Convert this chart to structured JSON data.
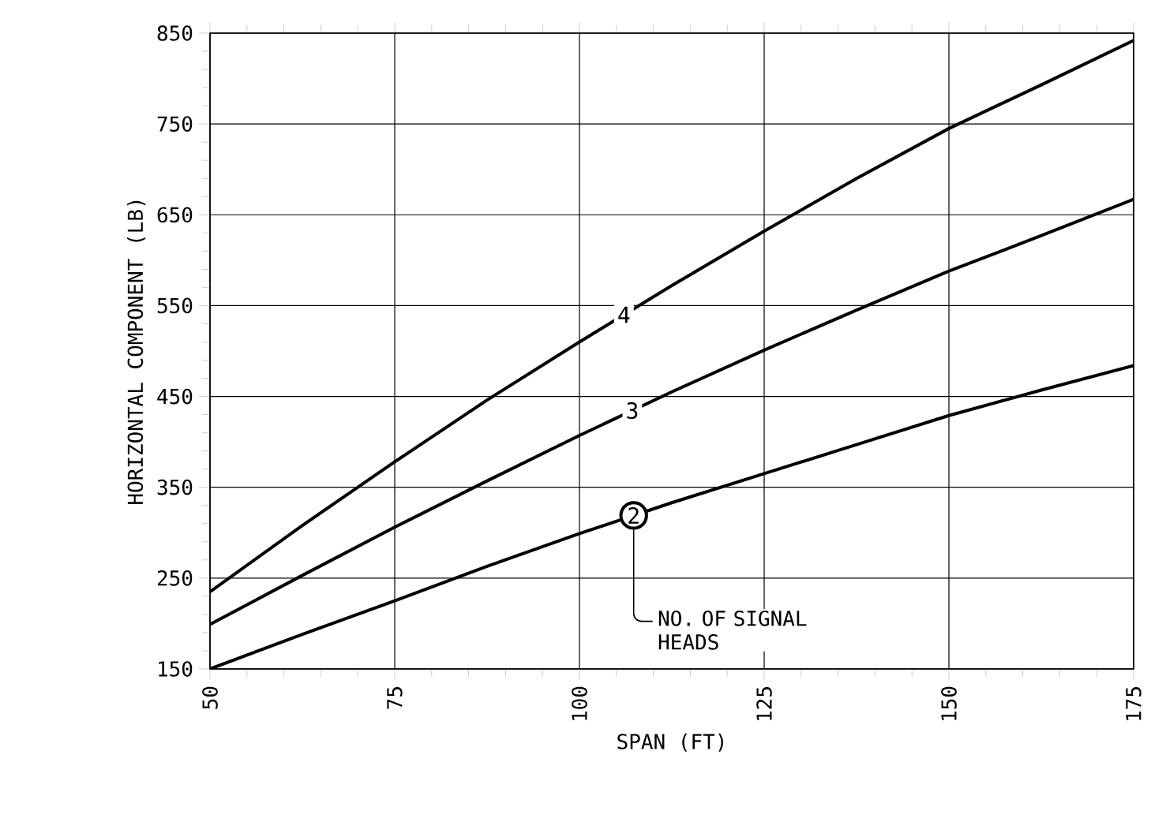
{
  "chart_data": {
    "type": "line",
    "xlabel": "SPAN (FT)",
    "ylabel": "HORIZONTAL COMPONENT (LB)",
    "x": [
      50,
      62.5,
      75,
      87.5,
      100,
      112.5,
      125,
      137.5,
      150,
      162.5,
      175
    ],
    "series": [
      {
        "name": "4",
        "color": "#000000",
        "values": [
          235,
          308,
          378,
          446,
          510,
          572,
          632,
          690,
          745,
          793,
          842
        ]
      },
      {
        "name": "3",
        "color": "#000000",
        "values": [
          199,
          253,
          306,
          357,
          407,
          455,
          501,
          545,
          588,
          627,
          667
        ]
      },
      {
        "name": "2",
        "color": "#000000",
        "values": [
          150,
          188,
          225,
          263,
          299,
          333,
          365,
          397,
          429,
          457,
          484
        ]
      }
    ],
    "xlim": [
      50,
      175
    ],
    "ylim": [
      150,
      850
    ],
    "xticks": [
      50,
      75,
      100,
      125,
      150,
      175
    ],
    "yticks": [
      150,
      250,
      350,
      450,
      550,
      650,
      750,
      850
    ],
    "grid": true,
    "marker": "none",
    "line_style": "solid",
    "annotations": [
      "NO. OF SIGNAL HEADS"
    ]
  }
}
